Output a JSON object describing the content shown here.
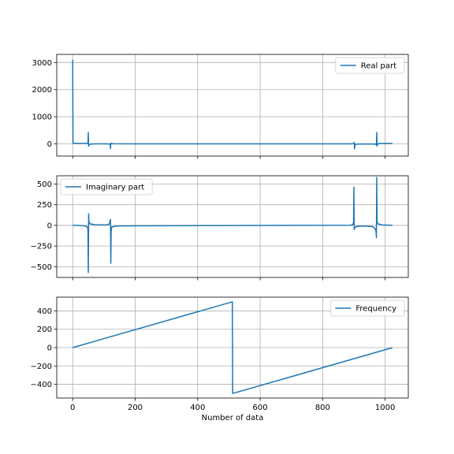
{
  "colors": {
    "line": "#1f77b4",
    "grid": "#b0b0b0",
    "frame": "#000000",
    "legend_border": "#cccccc",
    "background": "#ffffff"
  },
  "chart_data": [
    {
      "type": "line",
      "series": [
        {
          "name": "Real part",
          "points": [
            [
              0,
              3100
            ],
            [
              1,
              30
            ],
            [
              2,
              18
            ],
            [
              10,
              15
            ],
            [
              30,
              15
            ],
            [
              44,
              18
            ],
            [
              48,
              30
            ],
            [
              49,
              50
            ],
            [
              50,
              420
            ],
            [
              51,
              -90
            ],
            [
              52,
              -40
            ],
            [
              56,
              -10
            ],
            [
              70,
              0
            ],
            [
              110,
              0
            ],
            [
              118,
              -8
            ],
            [
              120,
              -25
            ],
            [
              121,
              -175
            ],
            [
              122,
              30
            ],
            [
              124,
              12
            ],
            [
              130,
              5
            ],
            [
              200,
              0
            ],
            [
              890,
              0
            ],
            [
              898,
              10
            ],
            [
              900,
              20
            ],
            [
              901,
              60
            ],
            [
              902,
              -180
            ],
            [
              904,
              -20
            ],
            [
              912,
              -8
            ],
            [
              960,
              -3
            ],
            [
              970,
              -10
            ],
            [
              972,
              -40
            ],
            [
              973,
              420
            ],
            [
              974,
              -80
            ],
            [
              975,
              -30
            ],
            [
              980,
              15
            ],
            [
              1000,
              15
            ],
            [
              1023,
              15
            ]
          ],
          "legend_position": "top-right"
        }
      ],
      "ylim": [
        -450,
        3300
      ],
      "yticks": [
        0,
        1000,
        2000,
        3000
      ],
      "xlim": [
        -51,
        1074
      ],
      "xticks": [
        0,
        200,
        400,
        600,
        800,
        1000
      ],
      "show_xtick_labels": false,
      "grid": true
    },
    {
      "type": "line",
      "series": [
        {
          "name": "Imaginary part",
          "points": [
            [
              0,
              0
            ],
            [
              10,
              0
            ],
            [
              30,
              -3
            ],
            [
              44,
              -10
            ],
            [
              48,
              -30
            ],
            [
              49,
              -70
            ],
            [
              50,
              -570
            ],
            [
              51,
              140
            ],
            [
              52,
              50
            ],
            [
              55,
              20
            ],
            [
              70,
              8
            ],
            [
              110,
              5
            ],
            [
              118,
              20
            ],
            [
              120,
              60
            ],
            [
              121,
              70
            ],
            [
              122,
              -460
            ],
            [
              123,
              -80
            ],
            [
              125,
              -20
            ],
            [
              140,
              -8
            ],
            [
              200,
              -5
            ],
            [
              890,
              2
            ],
            [
              897,
              10
            ],
            [
              899,
              40
            ],
            [
              900,
              460
            ],
            [
              901,
              -50
            ],
            [
              903,
              -25
            ],
            [
              910,
              -12
            ],
            [
              930,
              -8
            ],
            [
              960,
              -15
            ],
            [
              968,
              -40
            ],
            [
              971,
              -80
            ],
            [
              972,
              -150
            ],
            [
              973,
              580
            ],
            [
              974,
              60
            ],
            [
              976,
              20
            ],
            [
              990,
              5
            ],
            [
              1023,
              0
            ]
          ],
          "legend_position": "top-left"
        }
      ],
      "ylim": [
        -630,
        600
      ],
      "yticks": [
        -500,
        -250,
        0,
        250,
        500
      ],
      "xlim": [
        -51,
        1074
      ],
      "xticks": [
        0,
        200,
        400,
        600,
        800,
        1000
      ],
      "show_xtick_labels": false,
      "grid": true
    },
    {
      "type": "line",
      "series": [
        {
          "name": "Frequency",
          "points": [
            [
              0,
              0
            ],
            [
              511,
              499
            ],
            [
              512,
              -500
            ],
            [
              1023,
              -1
            ]
          ],
          "legend_position": "top-right"
        }
      ],
      "ylim": [
        -550,
        550
      ],
      "yticks": [
        -400,
        -200,
        0,
        200,
        400
      ],
      "xlim": [
        -51,
        1074
      ],
      "xticks": [
        0,
        200,
        400,
        600,
        800,
        1000
      ],
      "xtick_labels": [
        "0",
        "200",
        "400",
        "600",
        "800",
        "1000"
      ],
      "show_xtick_labels": true,
      "xlabel": "Number of data",
      "grid": true
    }
  ]
}
